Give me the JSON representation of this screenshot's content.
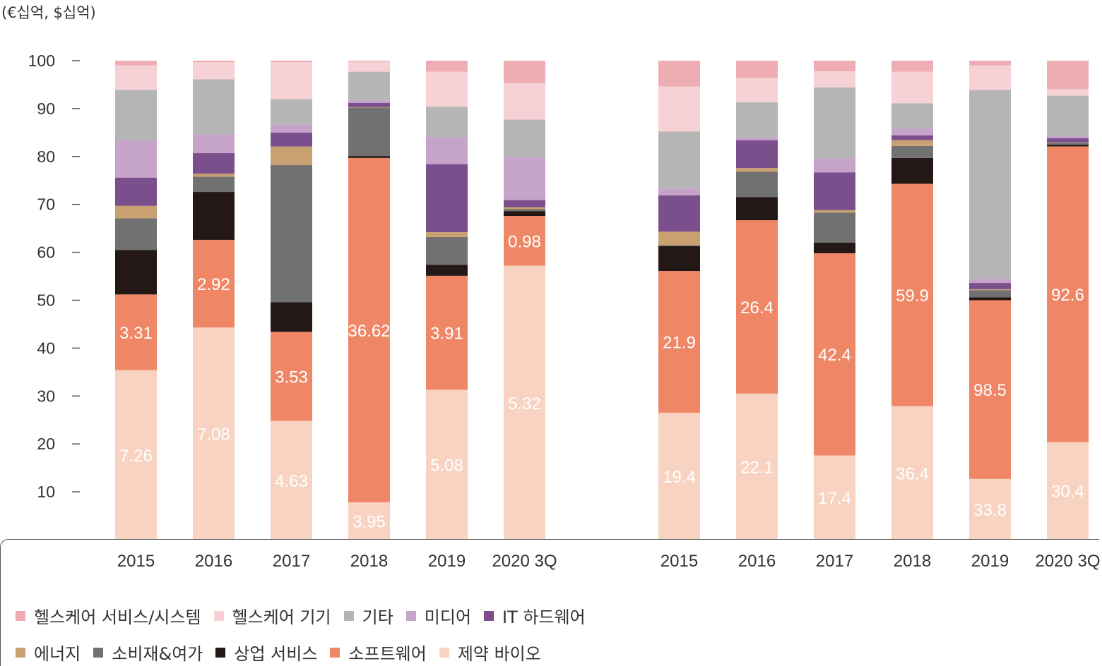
{
  "unit_label": "(€십억, $십억)",
  "chart_data": {
    "type": "bar",
    "stacked": true,
    "ylim": [
      0,
      100
    ],
    "yticks": [
      10,
      20,
      30,
      40,
      50,
      60,
      70,
      80,
      90,
      100
    ],
    "legend": {
      "row1": [
        "헬스케어 서비스/시스템",
        "헬스케어 기기",
        "기타",
        "미디어",
        "IT 하드웨어"
      ],
      "row2": [
        "에너지",
        "소비재&여가",
        "상업 서비스",
        "소프트웨어",
        "제약 바이오"
      ]
    },
    "series_colors": {
      "제약 바이오": "#f9d3c2",
      "소프트웨어": "#ef8666",
      "상업 서비스": "#231815",
      "소비재&여가": "#727171",
      "에너지": "#c9a06f",
      "IT 하드웨어": "#7b4f8b",
      "미디어": "#c6a3c9",
      "기타": "#b5b5b6",
      "헬스케어 기기": "#f6d1d5",
      "헬스케어 서비스/시스템": "#eeadb3"
    },
    "stack_order": [
      "제약 바이오",
      "소프트웨어",
      "상업 서비스",
      "소비재&여가",
      "에너지",
      "IT 하드웨어",
      "미디어",
      "기타",
      "헬스케어 기기",
      "헬스케어 서비스/시스템"
    ],
    "groups": [
      {
        "categories": [
          "2015",
          "2016",
          "2017",
          "2018",
          "2019",
          "2020 3Q"
        ],
        "segments": [
          {
            "제약 바이오": 35.4,
            "소프트웨어": 15.8,
            "상업 서비스": 9.3,
            "소비재&여가": 6.6,
            "에너지": 2.6,
            "IT 하드웨어": 5.9,
            "미디어": 7.7,
            "기타": 10.6,
            "헬스케어 기기": 5.1,
            "헬스케어 서비스/시스템": 1.0
          },
          {
            "제약 바이오": 44.3,
            "소프트웨어": 18.3,
            "상업 서비스": 10.0,
            "소비재&여가": 3.2,
            "에너지": 0.6,
            "IT 하드웨어": 4.3,
            "미디어": 3.9,
            "기타": 11.5,
            "헬스케어 기기": 3.6,
            "헬스케어 서비스/시스템": 0.3
          },
          {
            "제약 바이오": 24.8,
            "소프트웨어": 18.6,
            "상업 서비스": 6.2,
            "소비재&여가": 28.6,
            "에너지": 3.9,
            "IT 하드웨어": 2.9,
            "미디어": 1.7,
            "기타": 5.3,
            "헬스케어 기기": 7.7,
            "헬스케어 서비스/시스템": 0.3
          },
          {
            "제약 바이오": 7.8,
            "소프트웨어": 71.9,
            "상업 서비스": 0.4,
            "소비재&여가": 10.1,
            "에너지": 0.1,
            "IT 하드웨어": 0.9,
            "미디어": 0.5,
            "기타": 6.0,
            "헬스케어 기기": 2.1,
            "헬스케어 서비스/시스템": 0.2
          },
          {
            "제약 바이오": 31.3,
            "소프트웨어": 23.8,
            "상업 서비스": 2.3,
            "소비재&여가": 5.8,
            "에너지": 1.0,
            "IT 하드웨어": 14.2,
            "미디어": 5.6,
            "기타": 6.4,
            "헬스케어 기기": 7.3,
            "헬스케어 서비스/시스템": 2.3
          },
          {
            "제약 바이오": 57.2,
            "소프트웨어": 10.4,
            "상업 서비스": 1.0,
            "소비재&여가": 0.4,
            "에너지": 0.4,
            "IT 하드웨어": 1.5,
            "미디어": 8.9,
            "기타": 7.9,
            "헬스케어 기기": 7.6,
            "헬스케어 서비스/시스템": 4.7
          }
        ],
        "labels": [
          {
            "제약 바이오": "7.26",
            "소프트웨어": "3.31"
          },
          {
            "제약 바이오": "7.08",
            "소프트웨어": "2.92"
          },
          {
            "제약 바이오": "4.63",
            "소프트웨어": "3.53"
          },
          {
            "제약 바이오": "3.95",
            "소프트웨어": "36.62"
          },
          {
            "제약 바이오": "5.08",
            "소프트웨어": "3.91"
          },
          {
            "제약 바이오": "5.32",
            "소프트웨어": "0.98"
          }
        ]
      },
      {
        "categories": [
          "2015",
          "2016",
          "2017",
          "2018",
          "2019",
          "2020 3Q"
        ],
        "segments": [
          {
            "제약 바이오": 26.5,
            "소프트웨어": 29.6,
            "상업 서비스": 5.2,
            "소비재&여가": 0.2,
            "에너지": 2.8,
            "IT 하드웨어": 7.6,
            "미디어": 1.4,
            "기타": 11.9,
            "헬스케어 기기": 9.4,
            "헬스케어 서비스/시스템": 5.4
          },
          {
            "제약 바이오": 30.5,
            "소프트웨어": 36.2,
            "상업 서비스": 4.8,
            "소비재&여가": 5.3,
            "에너지": 0.8,
            "IT 하드웨어": 5.8,
            "미디어": 0.6,
            "기타": 7.3,
            "헬스케어 기기": 5.1,
            "헬스케어 서비스/시스템": 3.6
          },
          {
            "제약 바이오": 17.6,
            "소프트웨어": 42.2,
            "상업 서비스": 2.2,
            "소비재&여가": 6.3,
            "에너지": 0.5,
            "IT 하드웨어": 7.9,
            "미디어": 2.9,
            "기타": 14.8,
            "헬스케어 기기": 3.4,
            "헬스케어 서비스/시스템": 2.2
          },
          {
            "제약 바이오": 27.9,
            "소프트웨어": 46.4,
            "상업 서비스": 5.4,
            "소비재&여가": 2.5,
            "에너지": 1.2,
            "IT 하드웨어": 1.0,
            "미디어": 1.4,
            "기타": 5.3,
            "헬스케어 기기": 6.6,
            "헬스케어 서비스/시스템": 2.3
          },
          {
            "제약 바이오": 12.7,
            "소프트웨어": 37.3,
            "상업 서비스": 0.6,
            "소비재&여가": 1.5,
            "에너지": 0.2,
            "IT 하드웨어": 1.3,
            "미디어": 0.8,
            "기타": 39.5,
            "헬스케어 기기": 5.1,
            "헬스케어 서비스/시스템": 1.0
          },
          {
            "제약 바이오": 20.4,
            "소프트웨어": 61.7,
            "상업 서비스": 0.3,
            "소비재&여가": 0.4,
            "에너지": 0.1,
            "IT 하드웨어": 0.9,
            "미디어": 0.5,
            "기타": 8.4,
            "헬스케어 기기": 1.3,
            "헬스케어 서비스/시스템": 6.0
          }
        ],
        "labels": [
          {
            "제약 바이오": "19.4",
            "소프트웨어": "21.9"
          },
          {
            "제약 바이오": "22.1",
            "소프트웨어": "26.4"
          },
          {
            "제약 바이오": "17.4",
            "소프트웨어": "42.4"
          },
          {
            "제약 바이오": "36.4",
            "소프트웨어": "59.9"
          },
          {
            "제약 바이오": "33.8",
            "소프트웨어": "98.5"
          },
          {
            "제약 바이오": "30.4",
            "소프트웨어": "92.6"
          }
        ]
      }
    ]
  }
}
